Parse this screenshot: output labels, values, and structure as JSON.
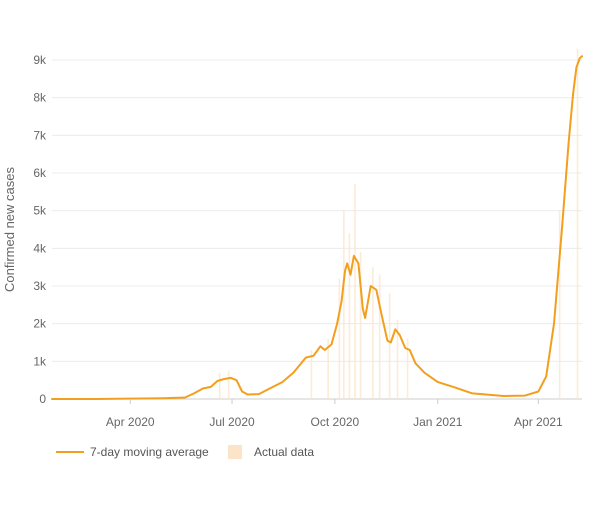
{
  "chart_data": {
    "type": "line",
    "title": "",
    "xlabel": "",
    "ylabel": "Confirmed new cases",
    "ylim": [
      0,
      9000
    ],
    "xlim": [
      "2020-01-22",
      "2021-05-10"
    ],
    "y_ticks": [
      0,
      1000,
      2000,
      3000,
      4000,
      5000,
      6000,
      7000,
      8000,
      9000
    ],
    "y_tick_labels": [
      "0",
      "1k",
      "2k",
      "3k",
      "4k",
      "5k",
      "6k",
      "7k",
      "8k",
      "9k"
    ],
    "x_ticks": [
      "2020-04-01",
      "2020-07-01",
      "2020-10-01",
      "2021-01-01",
      "2021-04-01"
    ],
    "x_tick_labels": [
      "Apr 2020",
      "Jul 2020",
      "Oct 2020",
      "Jan 2021",
      "Apr 2021"
    ],
    "grid": true,
    "legend": "bottom-left",
    "line_color": "#f29f1d",
    "bar_color": "#fbe4c8",
    "series": [
      {
        "name": "7-day moving average",
        "type": "line",
        "points": [
          [
            "2020-01-22",
            0
          ],
          [
            "2020-03-01",
            0
          ],
          [
            "2020-04-01",
            10
          ],
          [
            "2020-05-01",
            20
          ],
          [
            "2020-05-20",
            40
          ],
          [
            "2020-05-28",
            150
          ],
          [
            "2020-06-05",
            280
          ],
          [
            "2020-06-12",
            320
          ],
          [
            "2020-06-18",
            480
          ],
          [
            "2020-06-24",
            530
          ],
          [
            "2020-06-30",
            560
          ],
          [
            "2020-07-05",
            500
          ],
          [
            "2020-07-10",
            200
          ],
          [
            "2020-07-15",
            120
          ],
          [
            "2020-07-25",
            130
          ],
          [
            "2020-08-05",
            300
          ],
          [
            "2020-08-15",
            450
          ],
          [
            "2020-08-25",
            700
          ],
          [
            "2020-09-05",
            1100
          ],
          [
            "2020-09-12",
            1150
          ],
          [
            "2020-09-18",
            1400
          ],
          [
            "2020-09-22",
            1300
          ],
          [
            "2020-09-28",
            1450
          ],
          [
            "2020-10-03",
            2000
          ],
          [
            "2020-10-07",
            2600
          ],
          [
            "2020-10-10",
            3400
          ],
          [
            "2020-10-12",
            3600
          ],
          [
            "2020-10-15",
            3300
          ],
          [
            "2020-10-18",
            3800
          ],
          [
            "2020-10-22",
            3600
          ],
          [
            "2020-10-26",
            2400
          ],
          [
            "2020-10-28",
            2150
          ],
          [
            "2020-11-02",
            3000
          ],
          [
            "2020-11-07",
            2900
          ],
          [
            "2020-11-12",
            2200
          ],
          [
            "2020-11-17",
            1550
          ],
          [
            "2020-11-20",
            1500
          ],
          [
            "2020-11-24",
            1850
          ],
          [
            "2020-11-28",
            1700
          ],
          [
            "2020-12-03",
            1350
          ],
          [
            "2020-12-07",
            1300
          ],
          [
            "2020-12-12",
            950
          ],
          [
            "2020-12-20",
            700
          ],
          [
            "2021-01-01",
            450
          ],
          [
            "2021-01-15",
            320
          ],
          [
            "2021-02-01",
            150
          ],
          [
            "2021-03-01",
            80
          ],
          [
            "2021-03-20",
            90
          ],
          [
            "2021-04-01",
            200
          ],
          [
            "2021-04-08",
            600
          ],
          [
            "2021-04-15",
            2000
          ],
          [
            "2021-04-22",
            4500
          ],
          [
            "2021-04-28",
            6800
          ],
          [
            "2021-05-02",
            8100
          ],
          [
            "2021-05-05",
            8800
          ],
          [
            "2021-05-08",
            9050
          ],
          [
            "2021-05-10",
            9100
          ]
        ]
      },
      {
        "name": "Actual data",
        "type": "bar",
        "points": [
          [
            "2020-06-20",
            700
          ],
          [
            "2020-06-28",
            750
          ],
          [
            "2020-09-10",
            1300
          ],
          [
            "2020-09-25",
            1600
          ],
          [
            "2020-10-05",
            3200
          ],
          [
            "2020-10-09",
            5000
          ],
          [
            "2020-10-14",
            4400
          ],
          [
            "2020-10-19",
            5700
          ],
          [
            "2020-10-24",
            3900
          ],
          [
            "2020-11-04",
            3500
          ],
          [
            "2020-11-10",
            3300
          ],
          [
            "2020-11-19",
            2800
          ],
          [
            "2020-11-26",
            2100
          ],
          [
            "2020-12-05",
            1600
          ],
          [
            "2021-04-20",
            5000
          ],
          [
            "2021-05-06",
            9300
          ]
        ]
      }
    ]
  }
}
